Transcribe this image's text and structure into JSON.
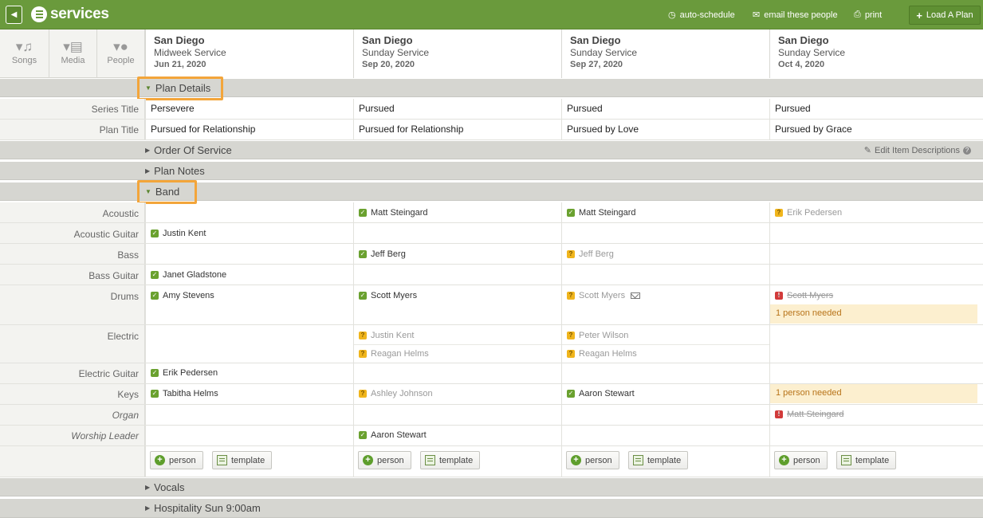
{
  "topbar": {
    "app_name": "services",
    "auto_schedule": "auto-schedule",
    "email": "email these people",
    "print": "print",
    "load_plan": "Load A Plan"
  },
  "tools": [
    {
      "label": "Songs",
      "icon": "music-note-icon"
    },
    {
      "label": "Media",
      "icon": "film-icon"
    },
    {
      "label": "People",
      "icon": "person-icon"
    }
  ],
  "columns": [
    {
      "city": "San Diego",
      "service": "Midweek Service",
      "date": "Jun 21, 2020"
    },
    {
      "city": "San Diego",
      "service": "Sunday Service",
      "date": "Sep 20, 2020"
    },
    {
      "city": "San Diego",
      "service": "Sunday Service",
      "date": "Sep 27, 2020"
    },
    {
      "city": "San Diego",
      "service": "Sunday Service",
      "date": "Oct 4, 2020"
    }
  ],
  "sections": {
    "plan_details": "Plan Details",
    "order_of_service": "Order Of Service",
    "edit_item_descriptions": "Edit Item Descriptions",
    "plan_notes": "Plan Notes",
    "band": "Band",
    "vocals": "Vocals",
    "hospitality": "Hospitality Sun 9:00am"
  },
  "plan_details": {
    "series_title_label": "Series Title",
    "plan_title_label": "Plan Title",
    "series_titles": [
      "Persevere",
      "Pursued",
      "Pursued",
      "Pursued"
    ],
    "plan_titles": [
      "Pursued for Relationship",
      "Pursued for Relationship",
      "Pursued by Love",
      "Pursued by Grace"
    ]
  },
  "band": {
    "acoustic": {
      "label": "Acoustic",
      "c2": "Matt Steingard",
      "c3": "Matt Steingard",
      "c4": "Erik Pedersen"
    },
    "acoustic_guitar": {
      "label": "Acoustic Guitar",
      "c1": "Justin Kent"
    },
    "bass": {
      "label": "Bass",
      "c2": "Jeff Berg",
      "c3": "Jeff Berg"
    },
    "bass_guitar": {
      "label": "Bass Guitar",
      "c1": "Janet Gladstone"
    },
    "drums": {
      "label": "Drums",
      "c1": "Amy Stevens",
      "c2": "Scott Myers",
      "c3": "Scott Myers",
      "c4": "Scott Myers",
      "c4_needed": "1 person needed"
    },
    "electric": {
      "label": "Electric",
      "c2a": "Justin Kent",
      "c2b": "Reagan Helms",
      "c3a": "Peter Wilson",
      "c3b": "Reagan Helms"
    },
    "electric_guitar": {
      "label": "Electric Guitar",
      "c1": "Erik Pedersen"
    },
    "keys": {
      "label": "Keys",
      "c1": "Tabitha Helms",
      "c2": "Ashley Johnson",
      "c3": "Aaron Stewart",
      "c4_needed": "1 person needed"
    },
    "organ": {
      "label": "Organ",
      "c4": "Matt Steingard"
    },
    "worship_leader": {
      "label": "Worship Leader",
      "c2": "Aaron Stewart"
    },
    "person_btn": "person",
    "template_btn": "template"
  },
  "colors": {
    "topbar": "#6a9a3c",
    "highlight": "#f3a53a",
    "confirmed": "#6aa12f",
    "pending": "#f0b51c",
    "declined": "#d23a3a",
    "needed_bg": "#fcefcf"
  }
}
